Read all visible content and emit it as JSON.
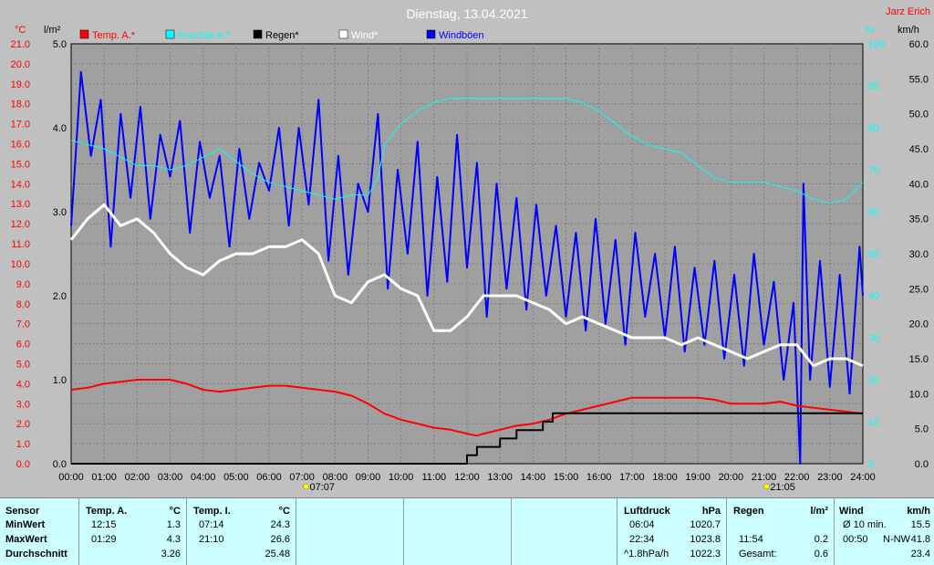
{
  "title": "Dienstag, 13.04.2021",
  "author": "Jarz Erich",
  "colors": {
    "temp": "#ff0000",
    "humidity": "#00ffff",
    "rain": "#000000",
    "wind": "#ffffff",
    "gust": "#0000ff"
  },
  "chart_data": {
    "type": "line",
    "title": "Dienstag, 13.04.2021",
    "xlabel": "",
    "x_ticks": [
      "00:00",
      "01:00",
      "02:00",
      "03:00",
      "04:00",
      "05:00",
      "06:00",
      "07:00",
      "08:00",
      "09:00",
      "10:00",
      "11:00",
      "12:00",
      "13:00",
      "14:00",
      "15:00",
      "16:00",
      "17:00",
      "18:00",
      "19:00",
      "20:00",
      "21:00",
      "22:00",
      "23:00",
      "24:00"
    ],
    "xlim": [
      0,
      24
    ],
    "axes": {
      "temp": {
        "unit": "°C",
        "range": [
          0,
          21
        ],
        "ticks": [
          "0.0",
          "1.0",
          "2.0",
          "3.0",
          "4.0",
          "5.0",
          "6.0",
          "7.0",
          "8.0",
          "9.0",
          "10.0",
          "11.0",
          "12.0",
          "13.0",
          "14.0",
          "15.0",
          "16.0",
          "17.0",
          "18.0",
          "19.0",
          "20.0",
          "21.0"
        ]
      },
      "rain": {
        "unit": "l/m²",
        "range": [
          0,
          5
        ],
        "ticks": [
          "0.0",
          "1.0",
          "2.0",
          "3.0",
          "4.0",
          "5.0"
        ]
      },
      "humidity": {
        "unit": "%",
        "range": [
          0,
          100
        ],
        "ticks": [
          "0",
          "10",
          "20",
          "30",
          "40",
          "50",
          "60",
          "70",
          "80",
          "90",
          "100"
        ]
      },
      "wind": {
        "unit": "km/h",
        "range": [
          0,
          60
        ],
        "ticks": [
          "0.0",
          "5.0",
          "10.0",
          "15.0",
          "20.0",
          "25.0",
          "30.0",
          "35.0",
          "40.0",
          "45.0",
          "50.0",
          "55.0",
          "60.0"
        ]
      }
    },
    "grid": true,
    "legend_placement": "top",
    "sun_markers": [
      {
        "time": 7.12,
        "label": "07:07"
      },
      {
        "time": 21.08,
        "label": "21:05"
      }
    ],
    "series": [
      {
        "name": "Temp. A.*",
        "axis": "temp",
        "color": "#ff0000",
        "x": [
          0,
          0.5,
          1,
          1.5,
          2,
          2.5,
          3,
          3.5,
          4,
          4.5,
          5,
          5.5,
          6,
          6.5,
          7,
          7.5,
          8,
          8.5,
          9,
          9.5,
          10,
          10.5,
          11,
          11.5,
          12,
          12.3,
          12.5,
          13,
          13.5,
          14,
          14.5,
          15,
          15.5,
          16,
          16.5,
          17,
          17.5,
          18,
          18.5,
          19,
          19.5,
          20,
          20.5,
          21,
          21.5,
          22,
          22.5,
          23,
          23.5,
          24
        ],
        "y": [
          3.7,
          3.8,
          4.0,
          4.1,
          4.2,
          4.2,
          4.2,
          4.0,
          3.7,
          3.6,
          3.7,
          3.8,
          3.9,
          3.9,
          3.8,
          3.7,
          3.6,
          3.4,
          3.0,
          2.5,
          2.2,
          2.0,
          1.8,
          1.7,
          1.5,
          1.4,
          1.5,
          1.7,
          1.9,
          2.0,
          2.2,
          2.5,
          2.7,
          2.9,
          3.1,
          3.3,
          3.3,
          3.3,
          3.3,
          3.3,
          3.2,
          3.0,
          3.0,
          3.0,
          3.1,
          2.9,
          2.8,
          2.7,
          2.6,
          2.5
        ]
      },
      {
        "name": "Feuchte A.*",
        "axis": "humidity",
        "color": "#00ffff",
        "x": [
          0,
          0.5,
          1,
          1.5,
          2,
          2.5,
          3,
          3.5,
          4,
          4.5,
          5,
          5.5,
          6,
          6.5,
          7,
          7.5,
          8,
          8.5,
          9,
          9.3,
          9.5,
          10,
          10.5,
          11,
          11.5,
          12,
          12.5,
          13,
          13.5,
          14,
          14.5,
          15,
          15.5,
          16,
          16.5,
          17,
          17.5,
          18,
          18.5,
          19,
          19.5,
          20,
          20.5,
          21,
          21.5,
          22,
          22.5,
          23,
          23.5,
          24
        ],
        "y": [
          77,
          76,
          75,
          73,
          71,
          71,
          70,
          71,
          73,
          75,
          72,
          69,
          67,
          66,
          65,
          64,
          63,
          64,
          64,
          68,
          76,
          81,
          84,
          86,
          87,
          87,
          87,
          87,
          87,
          87,
          87,
          87,
          86,
          84,
          81,
          78,
          76,
          75,
          74,
          71,
          68,
          67,
          67,
          67,
          66,
          65,
          63,
          62,
          63,
          67
        ]
      },
      {
        "name": "Regen*",
        "axis": "rain",
        "color": "#000000",
        "x": [
          0,
          11.9,
          12.0,
          12.3,
          12.6,
          13.0,
          13.5,
          14.0,
          14.3,
          14.6,
          15.0,
          24
        ],
        "y": [
          0,
          0,
          0.1,
          0.2,
          0.2,
          0.3,
          0.4,
          0.4,
          0.5,
          0.6,
          0.6,
          0.6
        ]
      },
      {
        "name": "Wind*",
        "axis": "wind",
        "color": "#ffffff",
        "x": [
          0,
          0.5,
          1,
          1.5,
          2,
          2.5,
          3,
          3.5,
          4,
          4.5,
          5,
          5.5,
          6,
          6.5,
          7,
          7.5,
          8,
          8.5,
          9,
          9.5,
          10,
          10.5,
          11,
          11.5,
          12,
          12.5,
          13,
          13.5,
          14,
          14.5,
          15,
          15.5,
          16,
          16.5,
          17,
          17.5,
          18,
          18.5,
          19,
          19.5,
          20,
          20.5,
          21,
          21.5,
          22,
          22.5,
          23,
          23.5,
          24
        ],
        "y": [
          32,
          35,
          37,
          34,
          35,
          33,
          30,
          28,
          27,
          29,
          30,
          30,
          31,
          31,
          32,
          30,
          24,
          23,
          26,
          27,
          25,
          24,
          19,
          19,
          21,
          24,
          24,
          24,
          23,
          22,
          20,
          21,
          20,
          19,
          18,
          18,
          18,
          17,
          18,
          17,
          16,
          15,
          16,
          17,
          17,
          14,
          15,
          15,
          14
        ]
      },
      {
        "name": "Windböen",
        "axis": "wind",
        "color": "#0000ff",
        "x": [
          0,
          0.3,
          0.6,
          0.9,
          1.2,
          1.5,
          1.8,
          2.1,
          2.4,
          2.7,
          3.0,
          3.3,
          3.6,
          3.9,
          4.2,
          4.5,
          4.8,
          5.1,
          5.4,
          5.7,
          6.0,
          6.3,
          6.6,
          6.9,
          7.2,
          7.5,
          7.8,
          8.1,
          8.4,
          8.7,
          9.0,
          9.3,
          9.6,
          9.9,
          10.2,
          10.5,
          10.8,
          11.1,
          11.4,
          11.7,
          12.0,
          12.3,
          12.6,
          12.9,
          13.2,
          13.5,
          13.8,
          14.1,
          14.4,
          14.7,
          15.0,
          15.3,
          15.6,
          15.9,
          16.2,
          16.5,
          16.8,
          17.1,
          17.4,
          17.7,
          18.0,
          18.3,
          18.6,
          18.9,
          19.2,
          19.5,
          19.8,
          20.1,
          20.4,
          20.7,
          21.0,
          21.3,
          21.6,
          21.9,
          22.1,
          22.2,
          22.4,
          22.7,
          23.0,
          23.3,
          23.6,
          23.9,
          24
        ],
        "y": [
          34,
          56,
          44,
          52,
          31,
          50,
          38,
          51,
          35,
          47,
          41,
          49,
          33,
          46,
          38,
          44,
          31,
          45,
          35,
          43,
          39,
          48,
          34,
          48,
          37,
          52,
          29,
          44,
          27,
          40,
          36,
          50,
          25,
          42,
          30,
          46,
          24,
          41,
          26,
          47,
          28,
          43,
          21,
          40,
          25,
          38,
          22,
          37,
          24,
          34,
          21,
          33,
          19,
          35,
          20,
          32,
          17,
          33,
          21,
          30,
          18,
          31,
          16,
          28,
          17,
          29,
          15,
          27,
          14,
          30,
          17,
          26,
          12,
          23,
          0,
          40,
          12,
          29,
          11,
          27,
          10,
          31,
          24
        ]
      }
    ]
  },
  "stats": {
    "sensor": {
      "h1": "Sensor",
      "r1": "MinWert",
      "r2": "MaxWert",
      "r3": "Durchschnitt"
    },
    "tempa": {
      "h": "Temp. A.",
      "u": "°C",
      "min_t": "12:15",
      "min_v": "1.3",
      "max_t": "01:29",
      "max_v": "4.3",
      "avg": "3.26"
    },
    "tempi": {
      "h": "Temp. I.",
      "u": "°C",
      "min_t": "07:14",
      "min_v": "24.3",
      "max_t": "21:10",
      "max_v": "26.6",
      "avg": "25.48"
    },
    "pressure": {
      "h": "Luftdruck",
      "u": "hPa",
      "min_t": "06:04",
      "min_v": "1020.7",
      "max_t": "22:34",
      "max_v": "1023.8",
      "trend": "^1.8hPa/h",
      "avg": "1022.3"
    },
    "rain": {
      "h": "Regen",
      "u": "l/m²",
      "max_t": "11:54",
      "max_v": "0.2",
      "total_l": "Gesamt:",
      "total_v": "0.6"
    },
    "wind": {
      "h": "Wind",
      "u": "km/h",
      "r1l": "Ø 10 min.",
      "r1v": "15.5",
      "r2t": "00:50",
      "r2d": "N-NW",
      "r2v": "41.8",
      "avg": "23.4"
    }
  }
}
